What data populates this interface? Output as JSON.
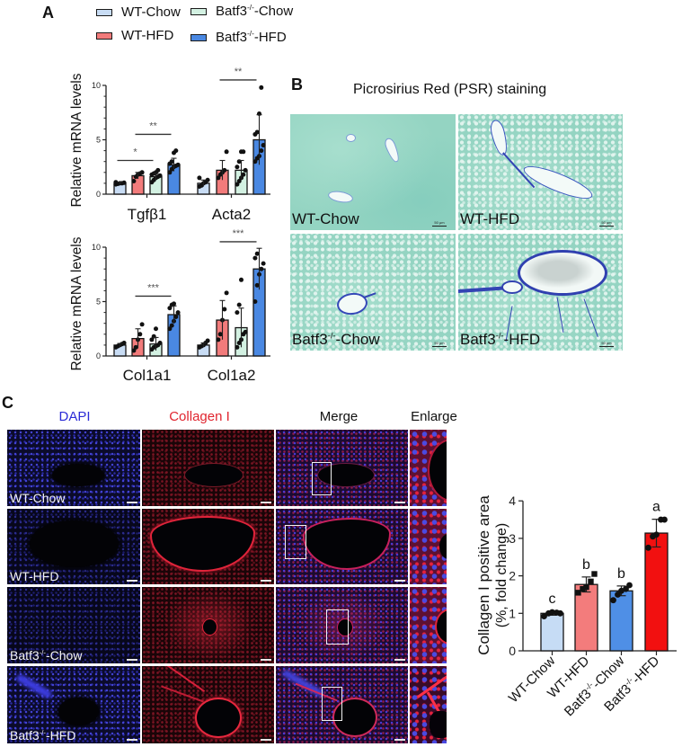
{
  "panel_a": {
    "label": "A",
    "legend": [
      {
        "base": "WT-Chow",
        "sup": "",
        "rest": "",
        "color": "#c8dcf4"
      },
      {
        "base": "WT-HFD",
        "sup": "",
        "rest": "",
        "color": "#f27b7b"
      },
      {
        "base": "Batf3",
        "sup": "-/-",
        "rest": "-Chow",
        "color": "#d3f1e2"
      },
      {
        "base": "Batf3",
        "sup": "-/-",
        "rest": "-HFD",
        "color": "#4a88e2"
      }
    ]
  },
  "panel_b": {
    "label": "B",
    "title": "Picrosirius Red (PSR) staining",
    "images": [
      {
        "base": "WT-Chow",
        "sup": "",
        "rest": "",
        "scale": "50 μm"
      },
      {
        "base": "WT-HFD",
        "sup": "",
        "rest": "",
        "scale": "50 μm"
      },
      {
        "base": "Batf3",
        "sup": "-/-",
        "rest": "-Chow",
        "scale": "50 μm"
      },
      {
        "base": "Batf3",
        "sup": "-/-",
        "rest": "-HFD",
        "scale": "50 μm"
      }
    ]
  },
  "panel_c": {
    "label": "C",
    "columns": [
      {
        "label": "DAPI",
        "color": "#2b2bd6"
      },
      {
        "label": "Collagen I",
        "color": "#e0242e"
      },
      {
        "label": "Merge",
        "color": "#111111"
      },
      {
        "label": "Enlarge",
        "color": "#111111"
      }
    ],
    "rows": [
      {
        "base": "WT-Chow",
        "sup": "",
        "rest": ""
      },
      {
        "base": "WT-HFD",
        "sup": "",
        "rest": ""
      },
      {
        "base": "Batf3",
        "sup": "-/-",
        "rest": "-Chow"
      },
      {
        "base": "Batf3",
        "sup": "-/-",
        "rest": "-HFD"
      }
    ]
  },
  "chart_data": [
    {
      "type": "bar",
      "title": "",
      "xlabel": "",
      "ylabel": "Relative mRNA levels",
      "ylim": [
        0,
        10
      ],
      "yticks": [
        0,
        5,
        10
      ],
      "grid": false,
      "categories": [
        "Tgfβ1",
        "Acta2"
      ],
      "series": [
        {
          "name": "WT-Chow",
          "color": "#c8dcf4",
          "values": [
            1.0,
            1.0
          ],
          "sd": [
            0.1,
            0.3
          ],
          "points": [
            [
              0.9,
              0.95,
              1.0,
              1.0,
              1.05,
              1.1
            ],
            [
              0.7,
              0.8,
              1.0,
              1.1,
              1.3,
              1.5
            ]
          ]
        },
        {
          "name": "WT-HFD",
          "color": "#f27b7b",
          "values": [
            1.7,
            2.2
          ],
          "sd": [
            0.3,
            0.9
          ],
          "points": [
            [
              1.2,
              1.6,
              1.8,
              1.9,
              2.0
            ],
            [
              1.5,
              1.8,
              2.0,
              2.2,
              3.9
            ]
          ]
        },
        {
          "name": "Batf3-/--Chow",
          "color": "#d3f1e2",
          "values": [
            1.6,
            2.2
          ],
          "sd": [
            0.3,
            0.9
          ],
          "points": [
            [
              1.1,
              1.3,
              1.5,
              1.6,
              1.7,
              1.8,
              1.9,
              2.0,
              2.2
            ],
            [
              0.9,
              1.2,
              1.5,
              1.8,
              2.2,
              2.5,
              3.0,
              3.9,
              3.9
            ]
          ]
        },
        {
          "name": "Batf3-/--HFD",
          "color": "#4a88e2",
          "values": [
            2.7,
            5.0
          ],
          "sd": [
            0.6,
            2.3
          ],
          "points": [
            [
              2.0,
              2.3,
              2.5,
              2.6,
              2.7,
              2.8,
              3.0,
              3.8,
              4.0
            ],
            [
              3.0,
              3.3,
              3.5,
              4.0,
              4.5,
              5.5,
              5.7,
              7.4,
              9.8
            ]
          ]
        }
      ],
      "annotations": [
        {
          "category": 0,
          "from": 0,
          "to": 2,
          "y": 3.1,
          "label": "*"
        },
        {
          "category": 0,
          "from": 1,
          "to": 3,
          "y": 5.5,
          "label": "**"
        },
        {
          "category": 1,
          "from": 1,
          "to": 3,
          "y": 10.5,
          "label": "**"
        }
      ]
    },
    {
      "type": "bar",
      "title": "",
      "xlabel": "",
      "ylabel": "Relative mRNA levels",
      "ylim": [
        0,
        10
      ],
      "yticks": [
        0,
        5,
        10
      ],
      "grid": false,
      "categories": [
        "Col1a1",
        "Col1a2"
      ],
      "series": [
        {
          "name": "WT-Chow",
          "color": "#c8dcf4",
          "values": [
            1.0,
            1.0
          ],
          "sd": [
            0.15,
            0.2
          ],
          "points": [
            [
              0.8,
              0.9,
              1.0,
              1.1,
              1.2
            ],
            [
              0.8,
              0.9,
              1.0,
              1.2,
              1.4
            ]
          ]
        },
        {
          "name": "WT-HFD",
          "color": "#f27b7b",
          "values": [
            1.6,
            3.3
          ],
          "sd": [
            0.9,
            1.8
          ],
          "points": [
            [
              0.5,
              0.8,
              1.5,
              2.0,
              2.9
            ],
            [
              1.5,
              2.0,
              3.3,
              4.3,
              5.8
            ]
          ]
        },
        {
          "name": "Batf3-/--Chow",
          "color": "#d3f1e2",
          "values": [
            1.1,
            2.6
          ],
          "sd": [
            0.6,
            1.8
          ],
          "points": [
            [
              0.6,
              0.8,
              0.9,
              1.0,
              1.2,
              1.5,
              1.8,
              2.5
            ],
            [
              0.8,
              1.2,
              1.5,
              2.0,
              2.2,
              4.0,
              4.7,
              7.0
            ]
          ]
        },
        {
          "name": "Batf3-/--HFD",
          "color": "#4a88e2",
          "values": [
            3.8,
            8.0
          ],
          "sd": [
            0.8,
            1.9
          ],
          "points": [
            [
              2.5,
              2.8,
              3.2,
              3.6,
              4.0,
              4.4,
              4.7,
              4.8
            ],
            [
              5.0,
              6.5,
              7.5,
              8.0,
              8.5,
              9.0,
              9.4
            ]
          ]
        }
      ],
      "annotations": [
        {
          "category": 0,
          "from": 1,
          "to": 3,
          "y": 5.5,
          "label": "***"
        },
        {
          "category": 1,
          "from": 1,
          "to": 3,
          "y": 10.5,
          "label": "***"
        }
      ]
    },
    {
      "type": "bar",
      "title": "",
      "xlabel": "",
      "ylabel": "Collagen I positive area (%, fold change)",
      "ylabel_lines": [
        "Collagen I positive area",
        "(%, fold change)"
      ],
      "ylim": [
        0,
        4
      ],
      "yticks": [
        0,
        1,
        2,
        3,
        4
      ],
      "grid": false,
      "categories": [
        "WT-Chow",
        "WT-HFD",
        "Batf3-/--Chow",
        "Batf3-/--HFD"
      ],
      "category_labels": [
        {
          "base": "WT-Chow",
          "sup": "",
          "rest": ""
        },
        {
          "base": "WT-HFD",
          "sup": "",
          "rest": ""
        },
        {
          "base": "Batf3",
          "sup": "-/-",
          "rest": "-Chow"
        },
        {
          "base": "Batf3",
          "sup": "-/-",
          "rest": "-HFD"
        }
      ],
      "values": [
        1.0,
        1.77,
        1.6,
        3.14
      ],
      "sd": [
        0.05,
        0.2,
        0.13,
        0.37
      ],
      "colors": [
        "#c6dcf5",
        "#f37c7c",
        "#4f8fe6",
        "#f21010"
      ],
      "markers": [
        "circle",
        "square",
        "circle",
        "circle"
      ],
      "points": [
        [
          0.92,
          1.0,
          1.03,
          1.02,
          1.0
        ],
        [
          1.55,
          1.65,
          1.7,
          1.85,
          2.05
        ],
        [
          1.35,
          1.5,
          1.6,
          1.65,
          1.75
        ],
        [
          2.75,
          3.05,
          3.1,
          3.5,
          3.5
        ]
      ],
      "letters": [
        "c",
        "b",
        "b",
        "a"
      ]
    }
  ]
}
